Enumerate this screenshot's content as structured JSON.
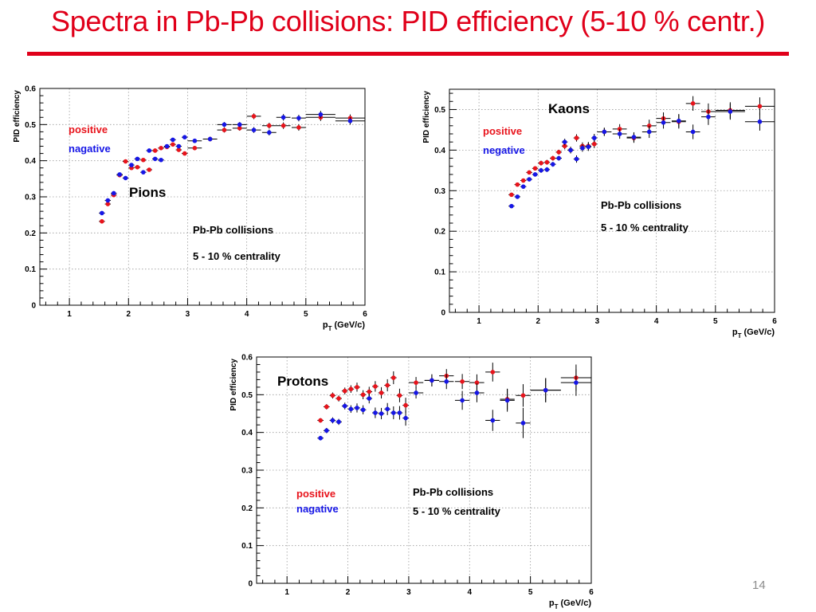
{
  "slide": {
    "title": "Spectra in Pb-Pb collisions: PID efficiency (5-10 % centr.)",
    "page_number": "14"
  },
  "colors": {
    "positive": "#e8141c",
    "negative": "#1616e6",
    "title": "#e0001a"
  },
  "chart_data": [
    {
      "id": "pions",
      "type": "scatter",
      "title": "Pions",
      "xlabel_main": "p",
      "xlabel_sub": "T",
      "xlabel_unit": "(GeV/c)",
      "ylabel": "PID efficiency",
      "xlim": [
        0.5,
        6.0
      ],
      "ylim": [
        0,
        0.6
      ],
      "xticks": [
        1,
        2,
        3,
        4,
        5,
        6
      ],
      "yticks": [
        0,
        0.1,
        0.2,
        0.3,
        0.4,
        0.5,
        0.6
      ],
      "ytick_labels": [
        "0",
        "0.1",
        "0.2",
        "0.3",
        "0.4",
        "0.5",
        "0.6"
      ],
      "grid": true,
      "legend": [
        "positive",
        "nagative"
      ],
      "annotations": [
        "Pb-Pb collisions",
        "5 - 10 % centrality"
      ],
      "series": [
        {
          "name": "positive",
          "color": "#e8141c",
          "x": [
            1.55,
            1.65,
            1.75,
            1.85,
            1.95,
            2.05,
            2.15,
            2.25,
            2.35,
            2.45,
            2.55,
            2.65,
            2.75,
            2.85,
            2.95,
            3.12,
            3.38,
            3.62,
            3.88,
            4.12,
            4.38,
            4.62,
            4.88,
            5.25,
            5.75
          ],
          "y": [
            0.232,
            0.28,
            0.305,
            0.36,
            0.398,
            0.38,
            0.382,
            0.402,
            0.375,
            0.428,
            0.435,
            0.438,
            0.445,
            0.43,
            0.42,
            0.435,
            0.46,
            0.485,
            0.49,
            0.523,
            0.497,
            0.497,
            0.492,
            0.52,
            0.518
          ],
          "xerr": [
            0.05,
            0.05,
            0.05,
            0.05,
            0.05,
            0.05,
            0.05,
            0.05,
            0.05,
            0.05,
            0.05,
            0.05,
            0.05,
            0.05,
            0.05,
            0.12,
            0.12,
            0.12,
            0.12,
            0.12,
            0.12,
            0.12,
            0.12,
            0.25,
            0.25
          ],
          "yerr": [
            0.004,
            0.004,
            0.004,
            0.004,
            0.004,
            0.004,
            0.004,
            0.004,
            0.004,
            0.004,
            0.004,
            0.005,
            0.005,
            0.005,
            0.005,
            0.006,
            0.006,
            0.007,
            0.007,
            0.008,
            0.008,
            0.009,
            0.009,
            0.01,
            0.01
          ]
        },
        {
          "name": "negative",
          "color": "#1616e6",
          "x": [
            1.55,
            1.65,
            1.75,
            1.85,
            1.95,
            2.05,
            2.15,
            2.25,
            2.35,
            2.45,
            2.55,
            2.65,
            2.75,
            2.85,
            2.95,
            3.12,
            3.38,
            3.62,
            3.88,
            4.12,
            4.38,
            4.62,
            4.88,
            5.25,
            5.75
          ],
          "y": [
            0.255,
            0.29,
            0.31,
            0.362,
            0.352,
            0.388,
            0.405,
            0.368,
            0.428,
            0.405,
            0.402,
            0.44,
            0.458,
            0.44,
            0.465,
            0.455,
            0.46,
            0.5,
            0.5,
            0.485,
            0.478,
            0.52,
            0.518,
            0.528,
            0.51
          ],
          "xerr": [
            0.05,
            0.05,
            0.05,
            0.05,
            0.05,
            0.05,
            0.05,
            0.05,
            0.05,
            0.05,
            0.05,
            0.05,
            0.05,
            0.05,
            0.05,
            0.12,
            0.12,
            0.12,
            0.12,
            0.12,
            0.12,
            0.12,
            0.12,
            0.25,
            0.25
          ],
          "yerr": [
            0.004,
            0.004,
            0.004,
            0.004,
            0.004,
            0.004,
            0.004,
            0.004,
            0.004,
            0.004,
            0.004,
            0.005,
            0.005,
            0.005,
            0.005,
            0.006,
            0.006,
            0.007,
            0.007,
            0.008,
            0.008,
            0.009,
            0.009,
            0.01,
            0.01
          ]
        }
      ]
    },
    {
      "id": "kaons",
      "type": "scatter",
      "title": "Kaons",
      "xlabel_main": "p",
      "xlabel_sub": "T",
      "xlabel_unit": "(GeV/c)",
      "ylabel": "PID efficiency",
      "xlim": [
        0.5,
        6.0
      ],
      "ylim": [
        0,
        0.55
      ],
      "xticks": [
        1,
        2,
        3,
        4,
        5,
        6
      ],
      "yticks": [
        0,
        0.1,
        0.2,
        0.3,
        0.4,
        0.5
      ],
      "ytick_labels": [
        "0",
        "0.1",
        "0.2",
        "0.3",
        "0.4",
        "0.5"
      ],
      "grid": true,
      "legend": [
        "positive",
        "negative"
      ],
      "annotations": [
        "Pb-Pb collisions",
        "5 - 10 % centrality"
      ],
      "series": [
        {
          "name": "positive",
          "color": "#e8141c",
          "x": [
            1.55,
            1.65,
            1.75,
            1.85,
            1.95,
            2.05,
            2.15,
            2.25,
            2.35,
            2.45,
            2.55,
            2.65,
            2.75,
            2.85,
            2.95,
            3.12,
            3.38,
            3.62,
            3.88,
            4.12,
            4.38,
            4.62,
            4.88,
            5.25,
            5.75
          ],
          "y": [
            0.29,
            0.315,
            0.325,
            0.345,
            0.355,
            0.368,
            0.37,
            0.38,
            0.395,
            0.41,
            0.4,
            0.43,
            0.41,
            0.41,
            0.415,
            0.445,
            0.452,
            0.43,
            0.46,
            0.478,
            0.47,
            0.515,
            0.495,
            0.498,
            0.508
          ],
          "xerr": [
            0.05,
            0.05,
            0.05,
            0.05,
            0.05,
            0.05,
            0.05,
            0.05,
            0.05,
            0.05,
            0.05,
            0.05,
            0.05,
            0.05,
            0.05,
            0.12,
            0.12,
            0.12,
            0.12,
            0.12,
            0.12,
            0.12,
            0.12,
            0.25,
            0.25
          ],
          "yerr": [
            0.005,
            0.005,
            0.005,
            0.005,
            0.005,
            0.006,
            0.006,
            0.006,
            0.006,
            0.008,
            0.008,
            0.009,
            0.009,
            0.01,
            0.01,
            0.01,
            0.012,
            0.012,
            0.015,
            0.015,
            0.017,
            0.018,
            0.02,
            0.02,
            0.022
          ]
        },
        {
          "name": "negative",
          "color": "#1616e6",
          "x": [
            1.55,
            1.65,
            1.75,
            1.85,
            1.95,
            2.05,
            2.15,
            2.25,
            2.35,
            2.45,
            2.55,
            2.65,
            2.75,
            2.85,
            2.95,
            3.12,
            3.38,
            3.62,
            3.88,
            4.12,
            4.38,
            4.62,
            4.88,
            5.25,
            5.75
          ],
          "y": [
            0.262,
            0.285,
            0.31,
            0.328,
            0.34,
            0.35,
            0.352,
            0.365,
            0.38,
            0.42,
            0.4,
            0.378,
            0.405,
            0.408,
            0.43,
            0.445,
            0.44,
            0.432,
            0.445,
            0.468,
            0.472,
            0.445,
            0.482,
            0.495,
            0.47
          ],
          "xerr": [
            0.05,
            0.05,
            0.05,
            0.05,
            0.05,
            0.05,
            0.05,
            0.05,
            0.05,
            0.05,
            0.05,
            0.05,
            0.05,
            0.05,
            0.05,
            0.12,
            0.12,
            0.12,
            0.12,
            0.12,
            0.12,
            0.12,
            0.12,
            0.25,
            0.25
          ],
          "yerr": [
            0.005,
            0.005,
            0.005,
            0.005,
            0.005,
            0.006,
            0.006,
            0.006,
            0.006,
            0.008,
            0.008,
            0.009,
            0.009,
            0.01,
            0.01,
            0.01,
            0.012,
            0.012,
            0.015,
            0.015,
            0.017,
            0.018,
            0.02,
            0.02,
            0.022
          ]
        }
      ]
    },
    {
      "id": "protons",
      "type": "scatter",
      "title": "Protons",
      "xlabel_main": "p",
      "xlabel_sub": "T",
      "xlabel_unit": "(GeV/c)",
      "ylabel": "PID efficiency",
      "xlim": [
        0.5,
        6.0
      ],
      "ylim": [
        0,
        0.6
      ],
      "xticks": [
        1,
        2,
        3,
        4,
        5,
        6
      ],
      "yticks": [
        0,
        0.1,
        0.2,
        0.3,
        0.4,
        0.5,
        0.6
      ],
      "ytick_labels": [
        "0",
        "0.1",
        "0.2",
        "0.3",
        "0.4",
        "0.5",
        "0.6"
      ],
      "grid": true,
      "legend": [
        "positive",
        "nagative"
      ],
      "annotations": [
        "Pb-Pb collisions",
        "5 - 10 % centrality"
      ],
      "series": [
        {
          "name": "positive",
          "color": "#e8141c",
          "x": [
            1.55,
            1.65,
            1.75,
            1.85,
            1.95,
            2.05,
            2.15,
            2.25,
            2.35,
            2.45,
            2.55,
            2.65,
            2.75,
            2.85,
            2.95,
            3.12,
            3.38,
            3.62,
            3.88,
            4.12,
            4.38,
            4.62,
            4.88,
            5.25,
            5.75
          ],
          "y": [
            0.432,
            0.468,
            0.498,
            0.49,
            0.51,
            0.515,
            0.52,
            0.5,
            0.508,
            0.522,
            0.505,
            0.525,
            0.545,
            0.498,
            0.472,
            0.532,
            0.538,
            0.55,
            0.535,
            0.532,
            0.56,
            0.488,
            0.498,
            0.512,
            0.545
          ],
          "xerr": [
            0.05,
            0.05,
            0.05,
            0.05,
            0.05,
            0.05,
            0.05,
            0.05,
            0.05,
            0.05,
            0.05,
            0.05,
            0.05,
            0.05,
            0.05,
            0.12,
            0.12,
            0.12,
            0.12,
            0.12,
            0.12,
            0.12,
            0.12,
            0.25,
            0.25
          ],
          "yerr": [
            0.006,
            0.007,
            0.008,
            0.008,
            0.009,
            0.01,
            0.012,
            0.012,
            0.013,
            0.014,
            0.015,
            0.016,
            0.017,
            0.018,
            0.02,
            0.015,
            0.016,
            0.018,
            0.02,
            0.022,
            0.025,
            0.028,
            0.03,
            0.032,
            0.035
          ]
        },
        {
          "name": "negative",
          "color": "#1616e6",
          "x": [
            1.55,
            1.65,
            1.75,
            1.85,
            1.95,
            2.05,
            2.15,
            2.25,
            2.35,
            2.45,
            2.55,
            2.65,
            2.75,
            2.85,
            2.95,
            3.12,
            3.38,
            3.62,
            3.88,
            4.12,
            4.38,
            4.62,
            4.88,
            5.25,
            5.75
          ],
          "y": [
            0.385,
            0.405,
            0.432,
            0.428,
            0.47,
            0.462,
            0.465,
            0.46,
            0.49,
            0.452,
            0.45,
            0.462,
            0.452,
            0.452,
            0.438,
            0.505,
            0.538,
            0.535,
            0.485,
            0.505,
            0.432,
            0.485,
            0.425,
            0.512,
            0.532
          ],
          "xerr": [
            0.05,
            0.05,
            0.05,
            0.05,
            0.05,
            0.05,
            0.05,
            0.05,
            0.05,
            0.05,
            0.05,
            0.05,
            0.05,
            0.05,
            0.05,
            0.12,
            0.12,
            0.12,
            0.12,
            0.12,
            0.12,
            0.12,
            0.12,
            0.25,
            0.25
          ],
          "yerr": [
            0.006,
            0.007,
            0.008,
            0.008,
            0.009,
            0.01,
            0.012,
            0.012,
            0.013,
            0.014,
            0.015,
            0.016,
            0.017,
            0.018,
            0.02,
            0.015,
            0.016,
            0.02,
            0.025,
            0.025,
            0.028,
            0.03,
            0.04,
            0.032,
            0.035
          ]
        }
      ]
    }
  ]
}
